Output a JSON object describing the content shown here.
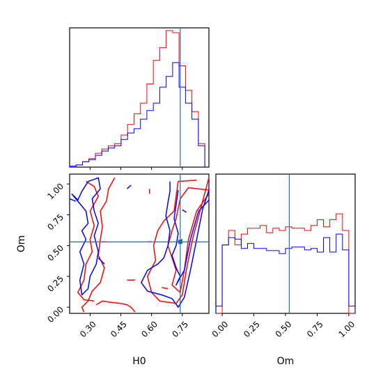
{
  "chart_data": {
    "type": "corner",
    "colors": {
      "red": "#ff0000",
      "blue": "#0000ff",
      "truth": "#1f6f9f"
    },
    "truth": {
      "H0": 0.74,
      "Om": 0.53
    },
    "hist_h0": {
      "xlim": [
        0.2,
        0.88
      ],
      "bin_edges": [
        0.2,
        0.2314,
        0.2629,
        0.2943,
        0.3257,
        0.3571,
        0.3886,
        0.42,
        0.4514,
        0.4829,
        0.5143,
        0.5457,
        0.5771,
        0.6086,
        0.64,
        0.6714,
        0.7029,
        0.7343,
        0.7657,
        0.7971,
        0.8286,
        0.86
      ],
      "series": [
        {
          "color": "red",
          "counts": [
            1,
            2,
            5,
            8,
            13,
            17,
            20,
            22,
            30,
            40,
            50,
            60,
            78,
            100,
            112,
            128,
            126,
            95,
            72,
            52,
            22
          ]
        },
        {
          "color": "blue",
          "counts": [
            1,
            2,
            5,
            7,
            11,
            15,
            18,
            20,
            26,
            32,
            36,
            45,
            53,
            60,
            75,
            85,
            98,
            75,
            60,
            45,
            20
          ]
        }
      ]
    },
    "hist_om": {
      "xlim": [
        -0.05,
        1.05
      ],
      "bin_edges": [
        -0.05,
        0.0,
        0.05,
        0.1,
        0.15,
        0.2,
        0.25,
        0.3,
        0.35,
        0.4,
        0.45,
        0.5,
        0.55,
        0.6,
        0.65,
        0.7,
        0.75,
        0.8,
        0.85,
        0.9,
        0.95,
        1.0,
        1.05
      ],
      "series": [
        {
          "color": "red",
          "counts": [
            0,
            95,
            115,
            95,
            110,
            118,
            118,
            122,
            112,
            118,
            115,
            120,
            118,
            118,
            115,
            122,
            130,
            120,
            130,
            138,
            115,
            0
          ]
        },
        {
          "color": "blue",
          "counts": [
            10,
            95,
            105,
            103,
            90,
            97,
            90,
            90,
            87,
            87,
            83,
            90,
            92,
            92,
            88,
            90,
            85,
            105,
            85,
            110,
            88,
            10
          ]
        }
      ]
    },
    "contour": {
      "xlim": [
        0.2,
        0.88
      ],
      "ylim": [
        -0.05,
        1.08
      ],
      "series": [
        {
          "color": "red",
          "lines": [
            [
              [
                0.82,
                1.03
              ],
              [
                0.73,
                1.02
              ],
              [
                0.72,
                0.9
              ],
              [
                0.71,
                0.78
              ],
              [
                0.66,
                0.7
              ],
              [
                0.63,
                0.62
              ],
              [
                0.61,
                0.5
              ],
              [
                0.62,
                0.38
              ],
              [
                0.58,
                0.25
              ],
              [
                0.6,
                0.12
              ],
              [
                0.64,
                0.05
              ],
              [
                0.72,
                0.03
              ],
              [
                0.75,
                0.1
              ],
              [
                0.77,
                0.3
              ],
              [
                0.8,
                0.55
              ],
              [
                0.84,
                0.8
              ],
              [
                0.88,
                1.05
              ]
            ],
            [
              [
                0.88,
                0.95
              ],
              [
                0.78,
                0.97
              ],
              [
                0.74,
                0.88
              ],
              [
                0.72,
                0.72
              ],
              [
                0.7,
                0.62
              ],
              [
                0.68,
                0.5
              ],
              [
                0.7,
                0.4
              ],
              [
                0.72,
                0.3
              ],
              [
                0.7,
                0.18
              ],
              [
                0.74,
                0.12
              ],
              [
                0.76,
                0.3
              ],
              [
                0.78,
                0.55
              ],
              [
                0.82,
                0.78
              ],
              [
                0.88,
                0.92
              ]
            ],
            [
              [
                0.42,
                1.05
              ],
              [
                0.39,
                0.96
              ],
              [
                0.38,
                0.86
              ],
              [
                0.35,
                0.78
              ],
              [
                0.36,
                0.65
              ],
              [
                0.35,
                0.55
              ],
              [
                0.34,
                0.42
              ],
              [
                0.37,
                0.32
              ],
              [
                0.35,
                0.2
              ],
              [
                0.31,
                0.13
              ],
              [
                0.29,
                0.05
              ],
              [
                0.26,
                0.0
              ],
              [
                0.27,
                -0.04
              ]
            ],
            [
              [
                0.28,
                1.02
              ],
              [
                0.32,
                0.98
              ],
              [
                0.34,
                0.9
              ],
              [
                0.3,
                0.78
              ],
              [
                0.32,
                0.66
              ],
              [
                0.3,
                0.55
              ],
              [
                0.31,
                0.45
              ],
              [
                0.28,
                0.35
              ],
              [
                0.27,
                0.22
              ],
              [
                0.24,
                0.12
              ],
              [
                0.27,
                0.06
              ],
              [
                0.32,
                0.05
              ]
            ],
            [
              [
                0.33,
                0.02
              ],
              [
                0.36,
                0.05
              ],
              [
                0.4,
                0.04
              ],
              [
                0.45,
                0.03
              ],
              [
                0.48,
                0.02
              ],
              [
                0.5,
                0.0
              ],
              [
                0.52,
                -0.04
              ]
            ],
            [
              [
                0.59,
                0.92
              ],
              [
                0.59,
                0.96
              ]
            ],
            [
              [
                0.48,
                0.22
              ],
              [
                0.52,
                0.22
              ]
            ],
            [
              [
                0.58,
                0.53
              ],
              [
                0.6,
                0.53
              ]
            ],
            [
              [
                0.36,
                0.53
              ],
              [
                0.38,
                0.53
              ]
            ],
            [
              [
                0.65,
                0.16
              ],
              [
                0.68,
                0.15
              ]
            ]
          ]
        },
        {
          "color": "blue",
          "lines": [
            [
              [
                0.69,
                1.02
              ],
              [
                0.69,
                0.94
              ],
              [
                0.68,
                0.85
              ],
              [
                0.67,
                0.74
              ],
              [
                0.69,
                0.62
              ],
              [
                0.68,
                0.5
              ],
              [
                0.66,
                0.4
              ],
              [
                0.63,
                0.35
              ],
              [
                0.58,
                0.3
              ],
              [
                0.55,
                0.2
              ],
              [
                0.58,
                0.13
              ],
              [
                0.65,
                0.1
              ],
              [
                0.7,
                0.07
              ],
              [
                0.73,
                0.0
              ],
              [
                0.76,
                0.08
              ],
              [
                0.79,
                0.3
              ],
              [
                0.82,
                0.55
              ],
              [
                0.85,
                0.8
              ],
              [
                0.88,
                0.95
              ]
            ],
            [
              [
                0.73,
                0.95
              ],
              [
                0.72,
                0.83
              ],
              [
                0.71,
                0.72
              ],
              [
                0.73,
                0.6
              ],
              [
                0.72,
                0.5
              ],
              [
                0.7,
                0.42
              ],
              [
                0.72,
                0.32
              ],
              [
                0.74,
                0.25
              ],
              [
                0.72,
                0.18
              ],
              [
                0.76,
                0.3
              ],
              [
                0.79,
                0.55
              ],
              [
                0.83,
                0.78
              ],
              [
                0.88,
                0.87
              ]
            ],
            [
              [
                0.21,
                0.92
              ],
              [
                0.24,
                0.87
              ],
              [
                0.26,
                0.94
              ],
              [
                0.29,
                1.02
              ],
              [
                0.34,
                1.05
              ],
              [
                0.35,
                0.96
              ],
              [
                0.31,
                0.88
              ],
              [
                0.32,
                0.78
              ],
              [
                0.34,
                0.68
              ],
              [
                0.32,
                0.58
              ],
              [
                0.34,
                0.45
              ],
              [
                0.33,
                0.35
              ],
              [
                0.3,
                0.25
              ],
              [
                0.29,
                0.15
              ],
              [
                0.26,
                0.1
              ],
              [
                0.25,
                0.22
              ],
              [
                0.27,
                0.35
              ],
              [
                0.25,
                0.45
              ],
              [
                0.28,
                0.55
              ],
              [
                0.26,
                0.62
              ],
              [
                0.29,
                0.68
              ],
              [
                0.28,
                0.78
              ],
              [
                0.25,
                0.84
              ],
              [
                0.21,
                0.92
              ]
            ],
            [
              [
                0.34,
                0.4
              ],
              [
                0.37,
                0.35
              ]
            ],
            [
              [
                0.2,
                0.88
              ],
              [
                0.23,
                0.86
              ]
            ],
            [
              [
                0.48,
                0.96
              ],
              [
                0.5,
                0.99
              ]
            ],
            [
              [
                0.75,
                0.79
              ],
              [
                0.77,
                0.77
              ]
            ],
            [
              [
                0.73,
                0.53
              ],
              [
                0.75,
                0.55
              ]
            ]
          ]
        }
      ]
    },
    "axes": {
      "h0_xlabel": "H0",
      "om_label": "Om",
      "h0_ticks": [
        {
          "value": 0.3,
          "label": "0.30"
        },
        {
          "value": 0.45,
          "label": "0.45"
        },
        {
          "value": 0.6,
          "label": "0.60"
        },
        {
          "value": 0.75,
          "label": "0.75"
        }
      ],
      "om_ticks": [
        {
          "value": 0.0,
          "label": "0.00"
        },
        {
          "value": 0.25,
          "label": "0.25"
        },
        {
          "value": 0.5,
          "label": "0.50"
        },
        {
          "value": 0.75,
          "label": "0.75"
        },
        {
          "value": 1.0,
          "label": "1.00"
        }
      ]
    }
  }
}
